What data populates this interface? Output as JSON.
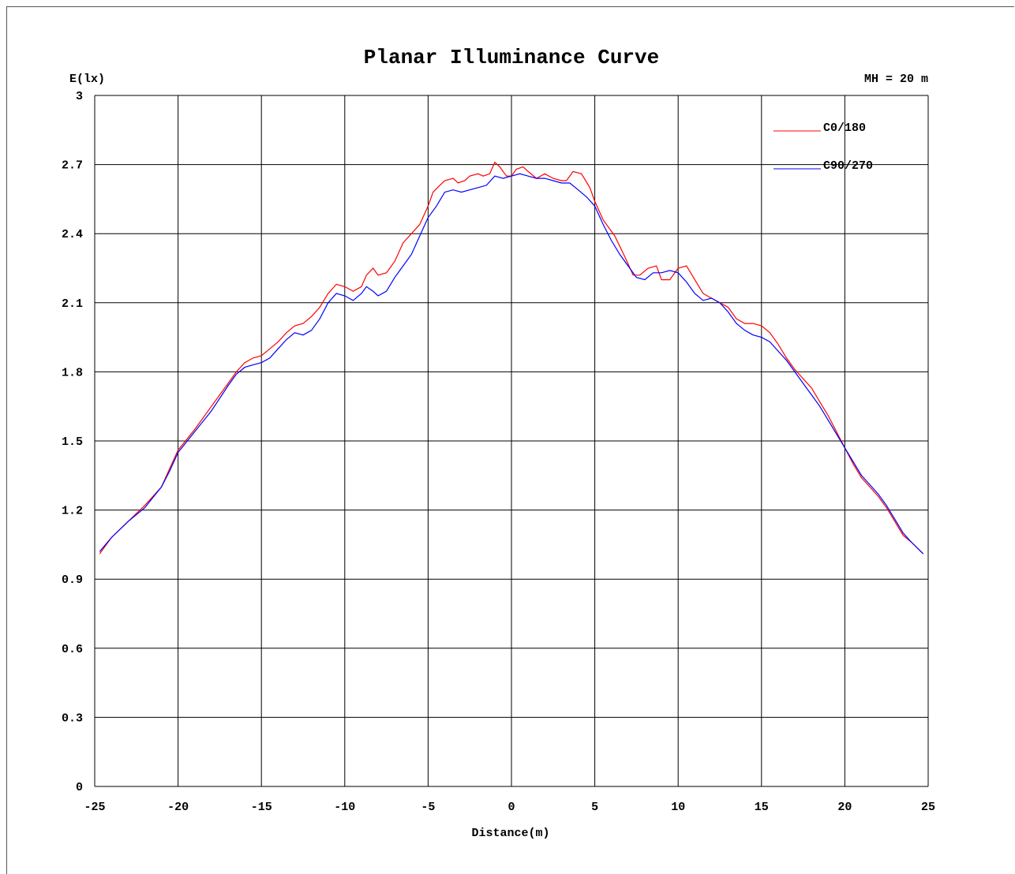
{
  "chart_data": {
    "type": "line",
    "title": "Planar Illuminance Curve",
    "ylabel": "E(lx)",
    "xlabel": "Distance(m)",
    "annotation": "MH = 20 m",
    "xlim": [
      -25,
      25
    ],
    "ylim": [
      0,
      3
    ],
    "x_ticks": [
      "-25",
      "-20",
      "-15",
      "-10",
      "-5",
      "0",
      "5",
      "10",
      "15",
      "20",
      "25"
    ],
    "y_ticks": [
      "0",
      "0.3",
      "0.6",
      "0.9",
      "1.2",
      "1.5",
      "1.8",
      "2.1",
      "2.4",
      "2.7",
      "3"
    ],
    "grid": true,
    "legend_position": "top-right",
    "series": [
      {
        "name": "C0/180",
        "color": "#ff0000",
        "points": [
          [
            -24.7,
            1.01
          ],
          [
            -24,
            1.08
          ],
          [
            -23,
            1.15
          ],
          [
            -22,
            1.22
          ],
          [
            -21,
            1.3
          ],
          [
            -20.5,
            1.38
          ],
          [
            -20,
            1.46
          ],
          [
            -19,
            1.55
          ],
          [
            -18,
            1.65
          ],
          [
            -17,
            1.75
          ],
          [
            -16.5,
            1.8
          ],
          [
            -16,
            1.84
          ],
          [
            -15.5,
            1.86
          ],
          [
            -15,
            1.87
          ],
          [
            -14.5,
            1.9
          ],
          [
            -14,
            1.93
          ],
          [
            -13.5,
            1.97
          ],
          [
            -13,
            2.0
          ],
          [
            -12.5,
            2.01
          ],
          [
            -12,
            2.04
          ],
          [
            -11.5,
            2.08
          ],
          [
            -11,
            2.14
          ],
          [
            -10.5,
            2.18
          ],
          [
            -10,
            2.17
          ],
          [
            -9.5,
            2.15
          ],
          [
            -9,
            2.17
          ],
          [
            -8.7,
            2.22
          ],
          [
            -8.3,
            2.25
          ],
          [
            -8,
            2.22
          ],
          [
            -7.5,
            2.23
          ],
          [
            -7,
            2.28
          ],
          [
            -6.5,
            2.36
          ],
          [
            -6,
            2.4
          ],
          [
            -5.5,
            2.44
          ],
          [
            -5,
            2.52
          ],
          [
            -4.7,
            2.58
          ],
          [
            -4.3,
            2.61
          ],
          [
            -4,
            2.63
          ],
          [
            -3.5,
            2.64
          ],
          [
            -3.2,
            2.62
          ],
          [
            -2.8,
            2.63
          ],
          [
            -2.5,
            2.65
          ],
          [
            -2,
            2.66
          ],
          [
            -1.7,
            2.65
          ],
          [
            -1.3,
            2.66
          ],
          [
            -1,
            2.71
          ],
          [
            -0.7,
            2.69
          ],
          [
            -0.3,
            2.65
          ],
          [
            0,
            2.65
          ],
          [
            0.3,
            2.68
          ],
          [
            0.7,
            2.69
          ],
          [
            1,
            2.67
          ],
          [
            1.5,
            2.64
          ],
          [
            2,
            2.66
          ],
          [
            2.5,
            2.64
          ],
          [
            3,
            2.63
          ],
          [
            3.3,
            2.63
          ],
          [
            3.7,
            2.67
          ],
          [
            4.2,
            2.66
          ],
          [
            4.7,
            2.6
          ],
          [
            5,
            2.54
          ],
          [
            5.5,
            2.46
          ],
          [
            6.2,
            2.39
          ],
          [
            6.8,
            2.3
          ],
          [
            7.3,
            2.22
          ],
          [
            7.7,
            2.22
          ],
          [
            8.2,
            2.25
          ],
          [
            8.7,
            2.26
          ],
          [
            9,
            2.2
          ],
          [
            9.5,
            2.2
          ],
          [
            10,
            2.25
          ],
          [
            10.5,
            2.26
          ],
          [
            11,
            2.2
          ],
          [
            11.5,
            2.14
          ],
          [
            12,
            2.12
          ],
          [
            12.5,
            2.1
          ],
          [
            13,
            2.08
          ],
          [
            13.5,
            2.03
          ],
          [
            14,
            2.01
          ],
          [
            14.5,
            2.01
          ],
          [
            15,
            2.0
          ],
          [
            15.5,
            1.97
          ],
          [
            16,
            1.92
          ],
          [
            16.5,
            1.86
          ],
          [
            17,
            1.81
          ],
          [
            17.5,
            1.77
          ],
          [
            18,
            1.73
          ],
          [
            18.5,
            1.67
          ],
          [
            19,
            1.61
          ],
          [
            19.5,
            1.54
          ],
          [
            20,
            1.47
          ],
          [
            20.5,
            1.4
          ],
          [
            21,
            1.34
          ],
          [
            21.5,
            1.3
          ],
          [
            22,
            1.26
          ],
          [
            22.5,
            1.21
          ],
          [
            23,
            1.15
          ],
          [
            23.5,
            1.09
          ],
          [
            24,
            1.06
          ],
          [
            24.7,
            1.01
          ]
        ]
      },
      {
        "name": "C90/270",
        "color": "#0000ff",
        "points": [
          [
            -24.7,
            1.02
          ],
          [
            -24,
            1.08
          ],
          [
            -23,
            1.15
          ],
          [
            -22,
            1.21
          ],
          [
            -21,
            1.3
          ],
          [
            -20.5,
            1.37
          ],
          [
            -20,
            1.45
          ],
          [
            -19,
            1.54
          ],
          [
            -18,
            1.63
          ],
          [
            -17,
            1.74
          ],
          [
            -16.5,
            1.79
          ],
          [
            -16,
            1.82
          ],
          [
            -15.5,
            1.83
          ],
          [
            -15,
            1.84
          ],
          [
            -14.5,
            1.86
          ],
          [
            -14,
            1.9
          ],
          [
            -13.5,
            1.94
          ],
          [
            -13,
            1.97
          ],
          [
            -12.5,
            1.96
          ],
          [
            -12,
            1.98
          ],
          [
            -11.5,
            2.03
          ],
          [
            -11,
            2.1
          ],
          [
            -10.5,
            2.14
          ],
          [
            -10,
            2.13
          ],
          [
            -9.5,
            2.11
          ],
          [
            -9,
            2.14
          ],
          [
            -8.7,
            2.17
          ],
          [
            -8.3,
            2.15
          ],
          [
            -8,
            2.13
          ],
          [
            -7.5,
            2.15
          ],
          [
            -7,
            2.21
          ],
          [
            -6.5,
            2.26
          ],
          [
            -6,
            2.31
          ],
          [
            -5.5,
            2.39
          ],
          [
            -5,
            2.47
          ],
          [
            -4.5,
            2.52
          ],
          [
            -4,
            2.58
          ],
          [
            -3.5,
            2.59
          ],
          [
            -3,
            2.58
          ],
          [
            -2.5,
            2.59
          ],
          [
            -2,
            2.6
          ],
          [
            -1.5,
            2.61
          ],
          [
            -1,
            2.65
          ],
          [
            -0.5,
            2.64
          ],
          [
            0,
            2.65
          ],
          [
            0.5,
            2.66
          ],
          [
            1,
            2.65
          ],
          [
            1.5,
            2.64
          ],
          [
            2,
            2.64
          ],
          [
            2.5,
            2.63
          ],
          [
            3,
            2.62
          ],
          [
            3.5,
            2.62
          ],
          [
            4,
            2.59
          ],
          [
            4.5,
            2.56
          ],
          [
            5,
            2.52
          ],
          [
            5.5,
            2.44
          ],
          [
            6,
            2.37
          ],
          [
            6.5,
            2.31
          ],
          [
            7,
            2.26
          ],
          [
            7.5,
            2.21
          ],
          [
            8,
            2.2
          ],
          [
            8.5,
            2.23
          ],
          [
            9,
            2.23
          ],
          [
            9.5,
            2.24
          ],
          [
            10,
            2.23
          ],
          [
            10.5,
            2.19
          ],
          [
            11,
            2.14
          ],
          [
            11.5,
            2.11
          ],
          [
            12,
            2.12
          ],
          [
            12.5,
            2.1
          ],
          [
            13,
            2.06
          ],
          [
            13.5,
            2.01
          ],
          [
            14,
            1.98
          ],
          [
            14.5,
            1.96
          ],
          [
            15,
            1.95
          ],
          [
            15.5,
            1.93
          ],
          [
            16,
            1.89
          ],
          [
            16.5,
            1.85
          ],
          [
            17,
            1.8
          ],
          [
            17.5,
            1.75
          ],
          [
            18,
            1.7
          ],
          [
            18.5,
            1.65
          ],
          [
            19,
            1.59
          ],
          [
            19.5,
            1.53
          ],
          [
            20,
            1.47
          ],
          [
            20.5,
            1.41
          ],
          [
            21,
            1.35
          ],
          [
            21.5,
            1.31
          ],
          [
            22,
            1.27
          ],
          [
            22.5,
            1.22
          ],
          [
            23,
            1.16
          ],
          [
            23.5,
            1.1
          ],
          [
            24,
            1.06
          ],
          [
            24.7,
            1.01
          ]
        ]
      }
    ]
  }
}
